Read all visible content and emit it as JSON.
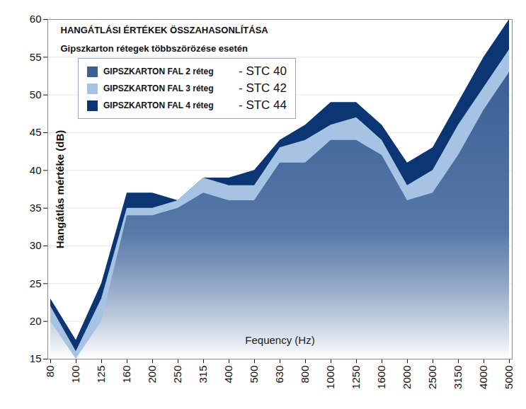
{
  "chart_data": {
    "type": "area",
    "title": "HANGÁTLÁSI ÉRTÉKEK ÖSSZAHASONLÍTÁSA",
    "subtitle": "Gipszkarton rétegek többszörözése esetén",
    "x_label": "Fequency (Hz)",
    "y_label": "Hangátlás mértéke (dB)",
    "categories": [
      "80",
      "100",
      "125",
      "160",
      "200",
      "250",
      "315",
      "400",
      "500",
      "630",
      "800",
      "1000",
      "1250",
      "1600",
      "2000",
      "2500",
      "3150",
      "4000",
      "5000"
    ],
    "series": [
      {
        "name": "GIPSZKARTON FAL 2 réteg",
        "rating": "- STC 40",
        "color": "#3b5f95",
        "values": [
          20,
          15,
          20,
          34,
          34,
          35,
          37,
          36,
          36,
          41,
          41,
          44,
          44,
          42,
          36,
          37,
          42,
          48,
          53
        ]
      },
      {
        "name": "GIPSZKARTON FAL 3 réteg",
        "rating": "- STC 42",
        "color": "#a7c3e3",
        "values": [
          22,
          16,
          23,
          35,
          35,
          36,
          39,
          38,
          38,
          43,
          44,
          46,
          47,
          44,
          38,
          40,
          46,
          51,
          56
        ]
      },
      {
        "name": "GIPSZKARTON FAL 4 réteg",
        "rating": "- STC 44",
        "color": "#0b3673",
        "values": [
          23,
          17.5,
          25,
          37,
          37,
          36,
          39,
          39,
          40,
          44,
          46,
          49,
          49,
          46,
          41,
          43,
          49,
          55,
          60
        ]
      }
    ],
    "ylim": [
      15,
      60
    ],
    "yticks": [
      15,
      20,
      25,
      30,
      35,
      40,
      45,
      50,
      55,
      60
    ],
    "grid": true,
    "legend": "top-left"
  }
}
